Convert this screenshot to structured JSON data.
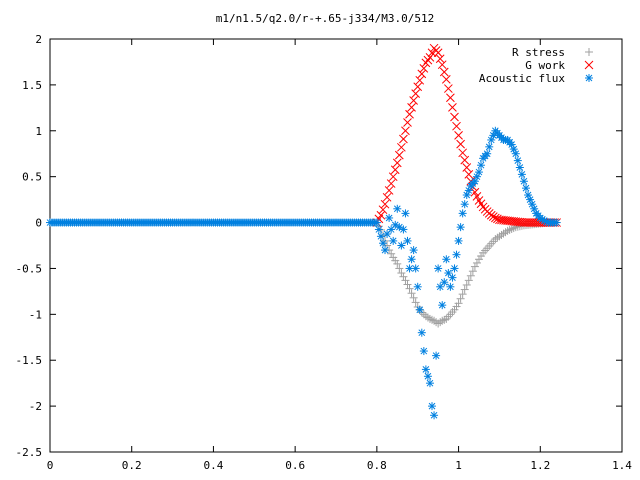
{
  "chart_data": {
    "type": "scatter",
    "title": "m1/n1.5/q2.0/r-+.65-j334/M3.0/512",
    "xlabel": "",
    "ylabel": "",
    "xlim": [
      0,
      1.4
    ],
    "ylim": [
      -2.5,
      2
    ],
    "x_ticks": [
      "0",
      "0.2",
      "0.4",
      "0.6",
      "0.8",
      "1",
      "1.2",
      "1.4"
    ],
    "y_ticks": [
      "2",
      "1.5",
      "1",
      "0.5",
      "0",
      "-0.5",
      "-1",
      "-1.5",
      "-2",
      "-2.5"
    ],
    "grid": false,
    "legend_position": "top-right",
    "series": [
      {
        "name": "R stress",
        "color": "#a0a0a0",
        "marker": "plus",
        "points": [
          [
            0.8,
            0.0
          ],
          [
            0.81,
            -0.08
          ],
          [
            0.82,
            -0.2
          ],
          [
            0.83,
            -0.3
          ],
          [
            0.84,
            -0.38
          ],
          [
            0.85,
            -0.45
          ],
          [
            0.86,
            -0.55
          ],
          [
            0.87,
            -0.63
          ],
          [
            0.88,
            -0.72
          ],
          [
            0.89,
            -0.82
          ],
          [
            0.9,
            -0.92
          ],
          [
            0.91,
            -0.98
          ],
          [
            0.92,
            -1.02
          ],
          [
            0.93,
            -1.05
          ],
          [
            0.94,
            -1.07
          ],
          [
            0.95,
            -1.1
          ],
          [
            0.96,
            -1.07
          ],
          [
            0.97,
            -1.05
          ],
          [
            0.98,
            -1.0
          ],
          [
            0.99,
            -0.95
          ],
          [
            1.0,
            -0.88
          ],
          [
            1.01,
            -0.78
          ],
          [
            1.02,
            -0.68
          ],
          [
            1.03,
            -0.58
          ],
          [
            1.04,
            -0.48
          ],
          [
            1.05,
            -0.4
          ],
          [
            1.06,
            -0.33
          ],
          [
            1.07,
            -0.28
          ],
          [
            1.08,
            -0.23
          ],
          [
            1.09,
            -0.18
          ],
          [
            1.1,
            -0.15
          ],
          [
            1.11,
            -0.12
          ],
          [
            1.12,
            -0.09
          ],
          [
            1.13,
            -0.07
          ],
          [
            1.14,
            -0.05
          ],
          [
            1.15,
            -0.04
          ],
          [
            1.16,
            -0.03
          ],
          [
            1.18,
            -0.02
          ],
          [
            1.2,
            -0.01
          ],
          [
            1.22,
            0.0
          ],
          [
            1.24,
            0.0
          ]
        ]
      },
      {
        "name": "G work",
        "color": "#ff0000",
        "marker": "cross",
        "points": [
          [
            0.8,
            0.0
          ],
          [
            0.81,
            0.08
          ],
          [
            0.82,
            0.2
          ],
          [
            0.83,
            0.35
          ],
          [
            0.84,
            0.5
          ],
          [
            0.85,
            0.65
          ],
          [
            0.86,
            0.82
          ],
          [
            0.87,
            1.0
          ],
          [
            0.88,
            1.18
          ],
          [
            0.89,
            1.33
          ],
          [
            0.9,
            1.48
          ],
          [
            0.91,
            1.62
          ],
          [
            0.92,
            1.74
          ],
          [
            0.93,
            1.8
          ],
          [
            0.94,
            1.9
          ],
          [
            0.95,
            1.85
          ],
          [
            0.96,
            1.72
          ],
          [
            0.97,
            1.56
          ],
          [
            0.98,
            1.36
          ],
          [
            0.99,
            1.15
          ],
          [
            1.0,
            0.95
          ],
          [
            1.01,
            0.76
          ],
          [
            1.02,
            0.6
          ],
          [
            1.03,
            0.45
          ],
          [
            1.04,
            0.33
          ],
          [
            1.05,
            0.24
          ],
          [
            1.06,
            0.17
          ],
          [
            1.07,
            0.12
          ],
          [
            1.08,
            0.08
          ],
          [
            1.09,
            0.05
          ],
          [
            1.1,
            0.03
          ],
          [
            1.12,
            0.02
          ],
          [
            1.14,
            0.01
          ],
          [
            1.16,
            0.0
          ],
          [
            1.18,
            0.0
          ],
          [
            1.2,
            0.0
          ],
          [
            1.22,
            0.0
          ],
          [
            1.24,
            0.0
          ]
        ]
      },
      {
        "name": "Acoustic flux",
        "color": "#0080e0",
        "marker": "star",
        "points": [
          [
            0.0,
            0.0
          ],
          [
            0.05,
            0.0
          ],
          [
            0.1,
            0.0
          ],
          [
            0.15,
            0.0
          ],
          [
            0.2,
            0.0
          ],
          [
            0.25,
            0.0
          ],
          [
            0.3,
            0.0
          ],
          [
            0.35,
            0.0
          ],
          [
            0.4,
            0.0
          ],
          [
            0.45,
            0.0
          ],
          [
            0.5,
            0.0
          ],
          [
            0.55,
            0.0
          ],
          [
            0.6,
            0.0
          ],
          [
            0.65,
            0.0
          ],
          [
            0.7,
            0.0
          ],
          [
            0.75,
            0.0
          ],
          [
            0.8,
            0.0
          ],
          [
            0.81,
            -0.15
          ],
          [
            0.82,
            -0.3
          ],
          [
            0.83,
            0.05
          ],
          [
            0.84,
            -0.2
          ],
          [
            0.85,
            0.15
          ],
          [
            0.86,
            -0.25
          ],
          [
            0.87,
            0.1
          ],
          [
            0.88,
            -0.5
          ],
          [
            0.89,
            -0.3
          ],
          [
            0.9,
            -0.7
          ],
          [
            0.91,
            -1.2
          ],
          [
            0.92,
            -1.6
          ],
          [
            0.93,
            -1.75
          ],
          [
            0.935,
            -2.0
          ],
          [
            0.94,
            -2.1
          ],
          [
            0.945,
            -1.45
          ],
          [
            0.95,
            -0.5
          ],
          [
            0.96,
            -0.9
          ],
          [
            0.97,
            -0.4
          ],
          [
            0.98,
            -0.7
          ],
          [
            0.99,
            -0.5
          ],
          [
            1.0,
            -0.2
          ],
          [
            1.01,
            0.1
          ],
          [
            1.02,
            0.3
          ],
          [
            1.03,
            0.4
          ],
          [
            1.04,
            0.45
          ],
          [
            1.05,
            0.55
          ],
          [
            1.06,
            0.7
          ],
          [
            1.07,
            0.75
          ],
          [
            1.08,
            0.9
          ],
          [
            1.09,
            1.0
          ],
          [
            1.1,
            0.95
          ],
          [
            1.11,
            0.9
          ],
          [
            1.12,
            0.9
          ],
          [
            1.13,
            0.85
          ],
          [
            1.14,
            0.75
          ],
          [
            1.15,
            0.6
          ],
          [
            1.16,
            0.45
          ],
          [
            1.17,
            0.3
          ],
          [
            1.18,
            0.2
          ],
          [
            1.19,
            0.1
          ],
          [
            1.2,
            0.05
          ],
          [
            1.21,
            0.02
          ],
          [
            1.22,
            0.0
          ],
          [
            1.23,
            0.0
          ],
          [
            1.24,
            0.0
          ]
        ]
      }
    ]
  }
}
